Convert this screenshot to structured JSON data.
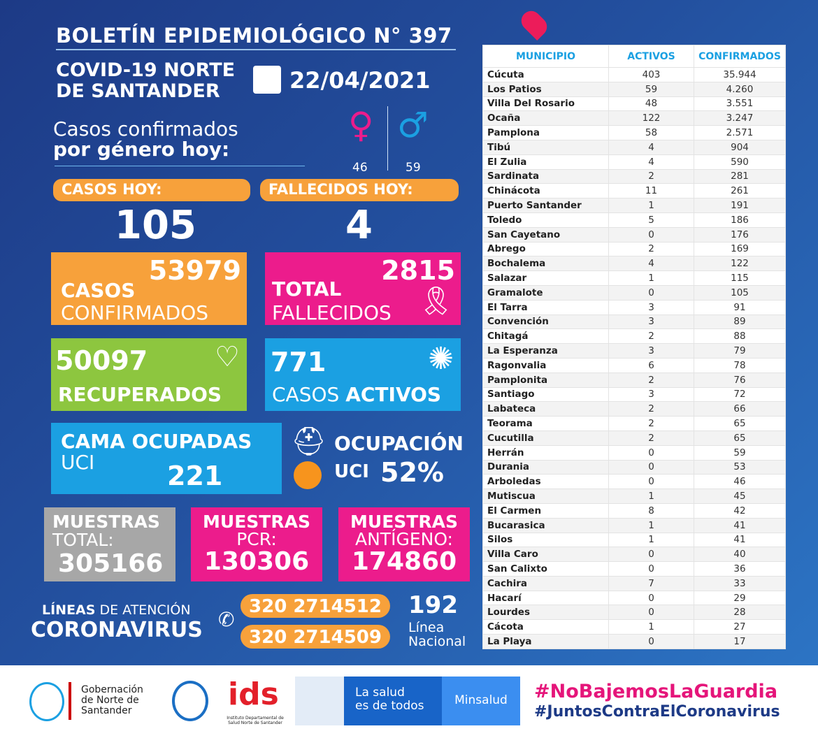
{
  "header": {
    "title": "BOLETÍN EPIDEMIOLÓGICO N° 397",
    "subtitle_line1": "COVID-19 NORTE",
    "subtitle_line2": "DE SANTANDER",
    "date": "22/04/2021"
  },
  "gender": {
    "label_line1": "Casos confirmados",
    "label_line2": "por género hoy:",
    "female": "46",
    "male": "59"
  },
  "today": {
    "cases_label": "CASOS HOY:",
    "cases": "105",
    "deaths_label": "FALLECIDOS HOY:",
    "deaths": "4"
  },
  "cards": {
    "confirmed": {
      "value": "53979",
      "l1": "CASOS",
      "l2": "CONFIRMADOS",
      "color": "#f7a13b"
    },
    "deaths": {
      "value": "2815",
      "l1": "TOTAL",
      "l2": "FALLECIDOS",
      "color": "#ec1c8c"
    },
    "recovered": {
      "value": "50097",
      "l1": "RECUPERADOS",
      "color": "#8dc63f"
    },
    "active": {
      "value": "771",
      "l1": "CASOS",
      "l2": "ACTIVOS",
      "color": "#1ba0e2"
    },
    "icu_beds": {
      "l1": "CAMA OCUPADAS",
      "l2": "UCI",
      "value": "221",
      "color": "#1ba0e2"
    },
    "icu_occupancy": {
      "l1": "OCUPACIÓN",
      "l2": "UCI",
      "value": "52%",
      "dot_color": "#f7941d"
    }
  },
  "samples": [
    {
      "l1": "MUESTRAS",
      "l2": "TOTAL:",
      "value": "305166",
      "color": "#a7a7a7"
    },
    {
      "l1": "MUESTRAS",
      "l2": "PCR:",
      "value": "130306",
      "color": "#ec1c8c"
    },
    {
      "l1": "MUESTRAS",
      "l2": "ANTÍGENO:",
      "value": "174860",
      "color": "#ec1c8c"
    }
  ],
  "lines": {
    "l1a": "LÍNEAS",
    "l1b": "DE ATENCIÓN",
    "l2": "CORONAVIRUS",
    "phone1": "320 2714512",
    "phone2": "320 2714509",
    "national": "192",
    "national_l1": "Línea",
    "national_l2": "Nacional"
  },
  "table": {
    "headers": [
      "MUNICIPIO",
      "ACTIVOS",
      "CONFIRMADOS"
    ],
    "rows": [
      [
        "Cúcuta",
        "403",
        "35.944"
      ],
      [
        "Los Patios",
        "59",
        "4.260"
      ],
      [
        "Villa Del Rosario",
        "48",
        "3.551"
      ],
      [
        "Ocaña",
        "122",
        "3.247"
      ],
      [
        "Pamplona",
        "58",
        "2.571"
      ],
      [
        "Tibú",
        "4",
        "904"
      ],
      [
        "El Zulia",
        "4",
        "590"
      ],
      [
        "Sardinata",
        "2",
        "281"
      ],
      [
        "Chinácota",
        "11",
        "261"
      ],
      [
        "Puerto Santander",
        "1",
        "191"
      ],
      [
        "Toledo",
        "5",
        "186"
      ],
      [
        "San Cayetano",
        "0",
        "176"
      ],
      [
        "Abrego",
        "2",
        "169"
      ],
      [
        "Bochalema",
        "4",
        "122"
      ],
      [
        "Salazar",
        "1",
        "115"
      ],
      [
        "Gramalote",
        "0",
        "105"
      ],
      [
        "El Tarra",
        "3",
        "91"
      ],
      [
        "Convención",
        "3",
        "89"
      ],
      [
        "Chitagá",
        "2",
        "88"
      ],
      [
        "La Esperanza",
        "3",
        "79"
      ],
      [
        "Ragonvalia",
        "6",
        "78"
      ],
      [
        "Pamplonita",
        "2",
        "76"
      ],
      [
        "Santiago",
        "3",
        "72"
      ],
      [
        "Labateca",
        "2",
        "66"
      ],
      [
        "Teorama",
        "2",
        "65"
      ],
      [
        "Cucutilla",
        "2",
        "65"
      ],
      [
        "Herrán",
        "0",
        "59"
      ],
      [
        "Durania",
        "0",
        "53"
      ],
      [
        "Arboledas",
        "0",
        "46"
      ],
      [
        "Mutiscua",
        "1",
        "45"
      ],
      [
        "El Carmen",
        "8",
        "42"
      ],
      [
        "Bucarasica",
        "1",
        "41"
      ],
      [
        "Silos",
        "1",
        "41"
      ],
      [
        "Villa Caro",
        "0",
        "40"
      ],
      [
        "San Calixto",
        "0",
        "36"
      ],
      [
        "Cachira",
        "7",
        "33"
      ],
      [
        "Hacarí",
        "0",
        "29"
      ],
      [
        "Lourdes",
        "0",
        "28"
      ],
      [
        "Cácota",
        "1",
        "27"
      ],
      [
        "La Playa",
        "0",
        "17"
      ]
    ]
  },
  "footer": {
    "gob_l1": "Gobernación",
    "gob_l2": "de Norte de",
    "gob_l3": "Santander",
    "ids": "Instituto Departamental de Salud Norte de Santander",
    "salud_l1": "La salud",
    "salud_l2": "es de todos",
    "minsalud": "Minsalud",
    "hashtag1": "#NoBajemosLaGuardia",
    "hashtag2": "#JuntosContraElCoronavirus"
  }
}
